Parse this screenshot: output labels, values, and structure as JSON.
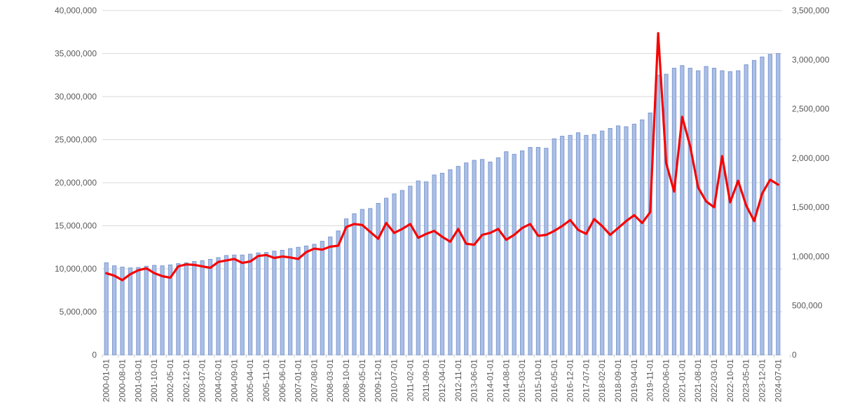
{
  "chart_data": {
    "type": "combo",
    "title": "",
    "x_labels": [
      "2000-01-01",
      "2000-08-01",
      "2001-03-01",
      "2001-10-01",
      "2002-05-01",
      "2002-12-01",
      "2003-07-01",
      "2004-02-01",
      "2004-09-01",
      "2005-04-01",
      "2005-11-01",
      "2006-06-01",
      "2007-01-01",
      "2007-08-01",
      "2008-03-01",
      "2008-10-01",
      "2009-05-01",
      "2009-12-01",
      "2010-07-01",
      "2011-02-01",
      "2011-09-01",
      "2012-04-01",
      "2012-11-01",
      "2013-06-01",
      "2014-01-01",
      "2014-08-01",
      "2015-03-01",
      "2015-10-01",
      "2016-05-01",
      "2016-12-01",
      "2017-07-01",
      "2018-02-01",
      "2018-09-01",
      "2019-04-01",
      "2019-11-01",
      "2020-06-01",
      "2021-01-01",
      "2021-08-01",
      "2022-03-01",
      "2022-10-01",
      "2023-05-01",
      "2023-12-01",
      "2024-07-01"
    ],
    "x_label_every_n_bars": 2,
    "series": [
      {
        "name": "bar-series-left-axis",
        "type": "bar",
        "axis": "left",
        "values": [
          10700000,
          10350000,
          10200000,
          10100000,
          10150000,
          10300000,
          10400000,
          10350000,
          10450000,
          10600000,
          10700000,
          10850000,
          10950000,
          11100000,
          11300000,
          11550000,
          11600000,
          11600000,
          11700000,
          11850000,
          11900000,
          12050000,
          12150000,
          12350000,
          12500000,
          12650000,
          12850000,
          13200000,
          13700000,
          14400000,
          15800000,
          16400000,
          16900000,
          17000000,
          17600000,
          18200000,
          18700000,
          19100000,
          19600000,
          20200000,
          20100000,
          20900000,
          21100000,
          21500000,
          21900000,
          22300000,
          22600000,
          22700000,
          22400000,
          22900000,
          23600000,
          23300000,
          23700000,
          24100000,
          24100000,
          24000000,
          25100000,
          25400000,
          25500000,
          25800000,
          25500000,
          25600000,
          26000000,
          26300000,
          26600000,
          26500000,
          26800000,
          27300000,
          28100000,
          32500000,
          32600000,
          33300000,
          33600000,
          33300000,
          33000000,
          33500000,
          33300000,
          33000000,
          32900000,
          33000000,
          33700000,
          34200000,
          34600000,
          34900000,
          35000000
        ]
      },
      {
        "name": "line-series-right-axis",
        "type": "line",
        "axis": "right",
        "values": [
          830000,
          805000,
          760000,
          820000,
          860000,
          880000,
          830000,
          800000,
          785000,
          900000,
          920000,
          915000,
          900000,
          885000,
          945000,
          960000,
          975000,
          935000,
          950000,
          1005000,
          1015000,
          985000,
          1000000,
          990000,
          975000,
          1045000,
          1080000,
          1070000,
          1100000,
          1110000,
          1300000,
          1330000,
          1320000,
          1250000,
          1180000,
          1340000,
          1240000,
          1280000,
          1330000,
          1190000,
          1230000,
          1260000,
          1200000,
          1150000,
          1280000,
          1130000,
          1120000,
          1220000,
          1240000,
          1280000,
          1170000,
          1220000,
          1290000,
          1330000,
          1210000,
          1220000,
          1260000,
          1310000,
          1370000,
          1270000,
          1230000,
          1380000,
          1310000,
          1220000,
          1290000,
          1360000,
          1420000,
          1340000,
          1450000,
          3270000,
          1950000,
          1660000,
          2420000,
          2120000,
          1700000,
          1560000,
          1500000,
          2020000,
          1550000,
          1770000,
          1520000,
          1360000,
          1640000,
          1780000,
          1730000
        ]
      }
    ],
    "left_axis": {
      "min": 0,
      "max": 40000000,
      "step": 5000000,
      "tick_labels": [
        "40,000,000",
        "35,000,000",
        "30,000,000",
        "25,000,000",
        "20,000,000",
        "15,000,000",
        "10,000,000",
        "5,000,000",
        "0"
      ]
    },
    "right_axis": {
      "min": 0,
      "max": 3500000,
      "step": 500000,
      "tick_labels": [
        "3,500,000",
        "3,000,000",
        "2,500,000",
        "2,000,000",
        "1,500,000",
        "1,000,000",
        "500,000",
        "0"
      ]
    },
    "legend": "none",
    "grid": "horizontal",
    "colors": {
      "bar_fill": "#aabfe5",
      "bar_border": "#7e9ad2",
      "line": "#f50505",
      "gridline": "#d9d9d9",
      "tick_mark": "#cccccc",
      "axis_text": "#595959",
      "background": "#ffffff"
    }
  }
}
